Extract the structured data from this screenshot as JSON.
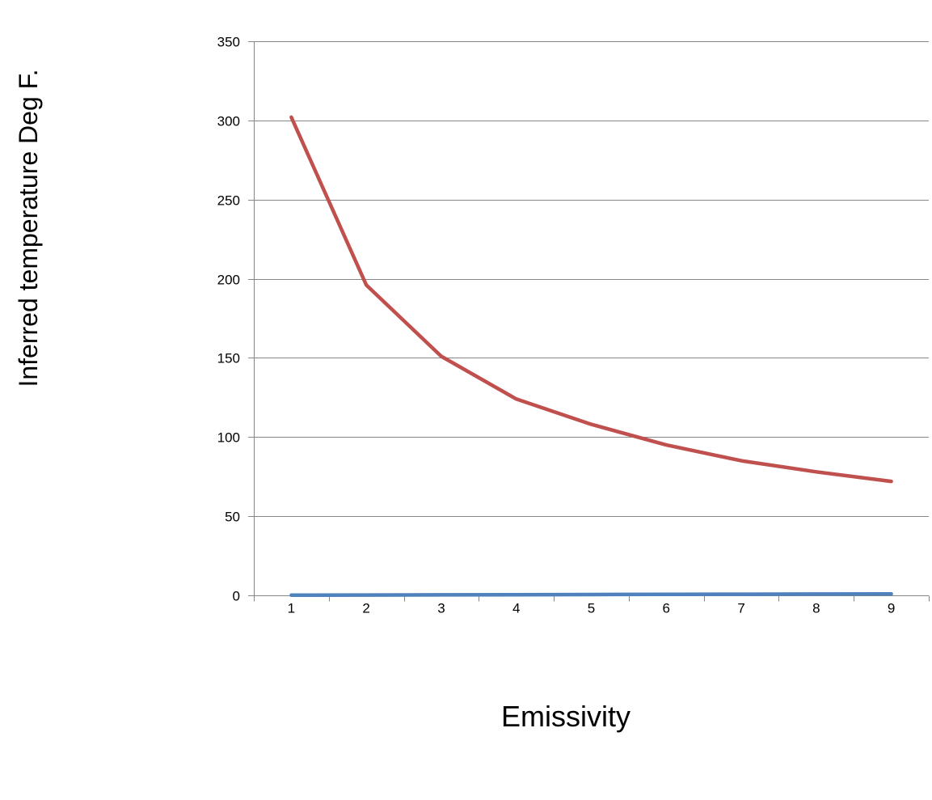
{
  "chart_data": {
    "type": "line",
    "title": "",
    "xlabel": "Emissivity",
    "ylabel": "Inferred temperature Deg F.",
    "categories": [
      "1",
      "2",
      "3",
      "4",
      "5",
      "6",
      "7",
      "8",
      "9"
    ],
    "ylim": [
      0,
      350
    ],
    "yticks": [
      0,
      50,
      100,
      150,
      200,
      250,
      300,
      350
    ],
    "grid": true,
    "legend": "none",
    "series": [
      {
        "color": "#4F81BD",
        "values": [
          0.1,
          0.2,
          0.3,
          0.4,
          0.5,
          0.6,
          0.7,
          0.8,
          0.9
        ]
      },
      {
        "color": "#C0504D",
        "values": [
          302,
          196,
          151,
          124,
          108,
          95,
          85,
          78,
          72
        ]
      }
    ]
  }
}
